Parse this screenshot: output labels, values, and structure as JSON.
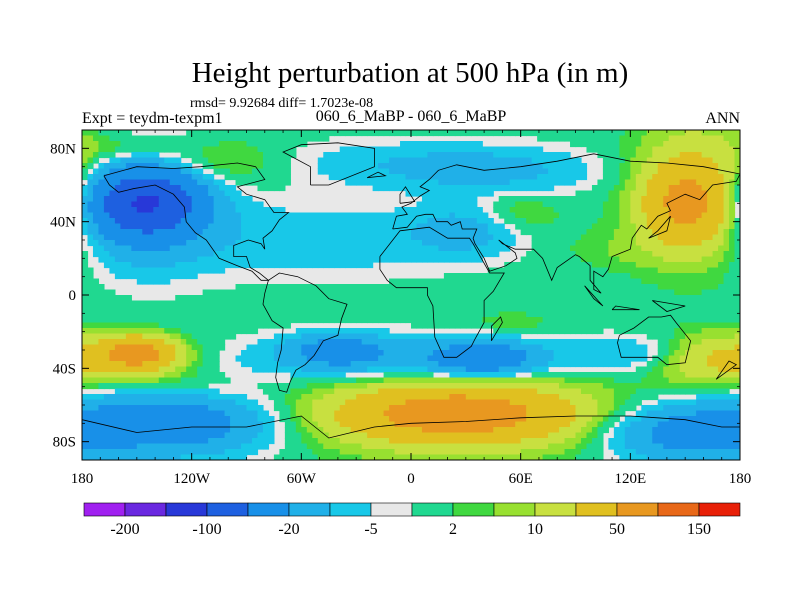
{
  "chart_data": {
    "type": "heatmap",
    "subtype": "filled-contour-map",
    "title": "Height perturbation at 500 hPa (in m)",
    "stats": "rmsd= 9.92684 diff= 1.7023e-08",
    "subtitle_left": "Expt = teydm-texpm1",
    "subtitle_center": "060_6_MaBP - 060_6_MaBP",
    "subtitle_right": "ANN",
    "x_axis": {
      "range": [
        -180,
        180
      ],
      "ticks": [
        -180,
        -120,
        -60,
        0,
        60,
        120,
        180
      ],
      "tick_labels": [
        "180",
        "120W",
        "60W",
        "0",
        "60E",
        "120E",
        "180"
      ]
    },
    "y_axis": {
      "range": [
        -90,
        90
      ],
      "ticks": [
        80,
        40,
        0,
        -40,
        -80
      ],
      "tick_labels": [
        "80N",
        "40N",
        "0",
        "40S",
        "80S"
      ]
    },
    "colorbar": {
      "colors": [
        "#a020f0",
        "#6a28e0",
        "#2838d8",
        "#1e60e0",
        "#1890e8",
        "#20b0e8",
        "#18c8e8",
        "#e8e8e8",
        "#20d890",
        "#40d840",
        "#98e030",
        "#c8e040",
        "#e0c020",
        "#e89820",
        "#e86818",
        "#e82008"
      ],
      "tick_labels": [
        "-200",
        "-100",
        "-20",
        "-5",
        "2",
        "10",
        "50",
        "150"
      ],
      "levels": [
        -200,
        -150,
        -100,
        -50,
        -20,
        -10,
        -5,
        -2,
        2,
        5,
        10,
        20,
        50,
        100,
        150
      ]
    },
    "field_blobs": [
      {
        "lon": -150,
        "lat": 50,
        "rlon": 42,
        "rlat": 32,
        "value": -30
      },
      {
        "lon": -145,
        "lat": 50,
        "rlon": 25,
        "rlat": 15,
        "value": -80
      },
      {
        "lon": -50,
        "lat": 30,
        "rlon": 75,
        "rlat": 20,
        "value": -9
      },
      {
        "lon": 30,
        "lat": 35,
        "rlon": 30,
        "rlat": 14,
        "value": -12
      },
      {
        "lon": -10,
        "lat": 72,
        "rlon": 75,
        "rlat": 13,
        "value": -8
      },
      {
        "lon": 50,
        "lat": 67,
        "rlon": 55,
        "rlat": 13,
        "value": -10
      },
      {
        "lon": 60,
        "lat": 45,
        "rlon": 22,
        "rlat": 11,
        "value": 7
      },
      {
        "lon": -112,
        "lat": 72,
        "rlon": 40,
        "rlat": 13,
        "value": 12
      },
      {
        "lon": -155,
        "lat": 80,
        "rlon": 28,
        "rlat": 8,
        "value": 8
      },
      {
        "lon": 160,
        "lat": 55,
        "rlon": 35,
        "rlat": 35,
        "value": 28
      },
      {
        "lon": 150,
        "lat": 50,
        "rlon": 18,
        "rlat": 18,
        "value": 48
      },
      {
        "lon": 115,
        "lat": 25,
        "rlon": 35,
        "rlat": 11,
        "value": 4
      },
      {
        "lon": -10,
        "lat": -35,
        "rlon": 95,
        "rlat": 13,
        "value": -14
      },
      {
        "lon": 40,
        "lat": -35,
        "rlon": 28,
        "rlat": 9,
        "value": -30
      },
      {
        "lon": -40,
        "lat": -30,
        "rlon": 25,
        "rlat": 9,
        "value": -22
      },
      {
        "lon": 130,
        "lat": -32,
        "rlon": 40,
        "rlat": 10,
        "value": -10
      },
      {
        "lon": -160,
        "lat": -35,
        "rlon": 40,
        "rlat": 13,
        "value": 20
      },
      {
        "lon": -150,
        "lat": -32,
        "rlon": 18,
        "rlat": 8,
        "value": 58
      },
      {
        "lon": 160,
        "lat": -35,
        "rlon": 28,
        "rlat": 13,
        "value": 18
      },
      {
        "lon": 25,
        "lat": -65,
        "rlon": 80,
        "rlat": 20,
        "value": 32
      },
      {
        "lon": 25,
        "lat": -65,
        "rlon": 45,
        "rlat": 11,
        "value": 55
      },
      {
        "lon": -130,
        "lat": -70,
        "rlon": 55,
        "rlat": 17,
        "value": -32
      },
      {
        "lon": 150,
        "lat": -75,
        "rlon": 45,
        "rlat": 16,
        "value": -28
      },
      {
        "lon": -120,
        "lat": -50,
        "rlon": 30,
        "rlat": 8,
        "value": 4
      },
      {
        "lon": 55,
        "lat": -15,
        "rlon": 18,
        "rlat": 5,
        "value": 6
      }
    ],
    "coastlines": [
      [
        [
          -168,
          65
        ],
        [
          -150,
          70
        ],
        [
          -130,
          69
        ],
        [
          -115,
          70
        ],
        [
          -95,
          72
        ],
        [
          -85,
          70
        ],
        [
          -80,
          63
        ],
        [
          -95,
          59
        ],
        [
          -90,
          55
        ],
        [
          -80,
          52
        ],
        [
          -75,
          45
        ],
        [
          -67,
          45
        ],
        [
          -72,
          41
        ],
        [
          -76,
          35
        ],
        [
          -81,
          31
        ],
        [
          -80,
          25
        ],
        [
          -82,
          28
        ],
        [
          -89,
          30
        ],
        [
          -97,
          27
        ],
        [
          -97,
          21
        ],
        [
          -90,
          21
        ],
        [
          -88,
          15
        ],
        [
          -83,
          12
        ],
        [
          -78,
          8
        ],
        [
          -82,
          8
        ],
        [
          -87,
          13
        ],
        [
          -95,
          16
        ],
        [
          -105,
          20
        ],
        [
          -112,
          30
        ],
        [
          -118,
          34
        ],
        [
          -123,
          40
        ],
        [
          -124,
          48
        ],
        [
          -130,
          55
        ],
        [
          -140,
          60
        ],
        [
          -152,
          58
        ],
        [
          -160,
          56
        ],
        [
          -165,
          60
        ],
        [
          -168,
          65
        ]
      ],
      [
        [
          -78,
          8
        ],
        [
          -72,
          12
        ],
        [
          -62,
          10
        ],
        [
          -52,
          5
        ],
        [
          -45,
          -2
        ],
        [
          -35,
          -5
        ],
        [
          -38,
          -13
        ],
        [
          -40,
          -22
        ],
        [
          -48,
          -25
        ],
        [
          -53,
          -33
        ],
        [
          -58,
          -38
        ],
        [
          -63,
          -41
        ],
        [
          -66,
          -47
        ],
        [
          -68,
          -53
        ],
        [
          -72,
          -52
        ],
        [
          -74,
          -45
        ],
        [
          -73,
          -37
        ],
        [
          -71,
          -30
        ],
        [
          -70,
          -18
        ],
        [
          -76,
          -14
        ],
        [
          -81,
          -5
        ],
        [
          -80,
          1
        ],
        [
          -78,
          8
        ]
      ],
      [
        [
          -10,
          36
        ],
        [
          -8,
          43
        ],
        [
          -2,
          44
        ],
        [
          -5,
          48
        ],
        [
          0,
          50
        ],
        [
          5,
          54
        ],
        [
          10,
          57
        ],
        [
          5,
          59
        ],
        [
          10,
          63
        ],
        [
          15,
          68
        ],
        [
          25,
          71
        ],
        [
          40,
          68
        ],
        [
          60,
          70
        ],
        [
          80,
          73
        ],
        [
          100,
          77
        ],
        [
          120,
          73
        ],
        [
          140,
          72
        ],
        [
          160,
          70
        ],
        [
          180,
          66
        ],
        [
          178,
          62
        ],
        [
          165,
          60
        ],
        [
          158,
          52
        ],
        [
          150,
          55
        ],
        [
          140,
          50
        ],
        [
          142,
          46
        ],
        [
          135,
          43
        ],
        [
          129,
          36
        ],
        [
          126,
          38
        ],
        [
          121,
          31
        ],
        [
          120,
          25
        ],
        [
          110,
          21
        ],
        [
          108,
          14
        ],
        [
          105,
          10
        ],
        [
          100,
          13
        ],
        [
          100,
          3
        ],
        [
          104,
          1
        ],
        [
          98,
          8
        ],
        [
          98,
          16
        ],
        [
          92,
          21
        ],
        [
          90,
          22
        ],
        [
          80,
          15
        ],
        [
          77,
          8
        ],
        [
          72,
          20
        ],
        [
          67,
          25
        ],
        [
          57,
          25
        ],
        [
          50,
          28
        ],
        [
          48,
          30
        ],
        [
          57,
          23
        ],
        [
          58,
          20
        ],
        [
          52,
          16
        ],
        [
          43,
          13
        ],
        [
          40,
          20
        ],
        [
          35,
          28
        ],
        [
          34,
          31
        ],
        [
          36,
          36
        ],
        [
          28,
          36
        ],
        [
          27,
          40
        ],
        [
          22,
          38
        ],
        [
          20,
          40
        ],
        [
          14,
          40
        ],
        [
          12,
          44
        ],
        [
          8,
          44
        ],
        [
          3,
          43
        ],
        [
          -2,
          37
        ],
        [
          -10,
          36
        ]
      ],
      [
        [
          -17,
          21
        ],
        [
          -6,
          35
        ],
        [
          10,
          37
        ],
        [
          20,
          31
        ],
        [
          32,
          31
        ],
        [
          34,
          28
        ],
        [
          43,
          12
        ],
        [
          51,
          12
        ],
        [
          45,
          2
        ],
        [
          40,
          -3
        ],
        [
          40,
          -15
        ],
        [
          35,
          -24
        ],
        [
          33,
          -28
        ],
        [
          25,
          -34
        ],
        [
          18,
          -34
        ],
        [
          13,
          -23
        ],
        [
          12,
          -6
        ],
        [
          9,
          0
        ],
        [
          9,
          4
        ],
        [
          5,
          4
        ],
        [
          -8,
          4
        ],
        [
          -13,
          8
        ],
        [
          -17,
          14
        ],
        [
          -17,
          21
        ]
      ],
      [
        [
          114,
          -22
        ],
        [
          122,
          -18
        ],
        [
          130,
          -12
        ],
        [
          137,
          -12
        ],
        [
          142,
          -11
        ],
        [
          145,
          -15
        ],
        [
          153,
          -25
        ],
        [
          150,
          -37
        ],
        [
          140,
          -38
        ],
        [
          135,
          -34
        ],
        [
          125,
          -34
        ],
        [
          115,
          -34
        ],
        [
          113,
          -26
        ],
        [
          114,
          -22
        ]
      ],
      [
        [
          -55,
          60
        ],
        [
          -45,
          60
        ],
        [
          -20,
          70
        ],
        [
          -20,
          80
        ],
        [
          -40,
          83
        ],
        [
          -60,
          82
        ],
        [
          -70,
          78
        ],
        [
          -55,
          70
        ],
        [
          -55,
          60
        ]
      ],
      [
        [
          -180,
          -68
        ],
        [
          -150,
          -75
        ],
        [
          -120,
          -72
        ],
        [
          -90,
          -72
        ],
        [
          -60,
          -66
        ],
        [
          -45,
          -78
        ],
        [
          -20,
          -72
        ],
        [
          0,
          -70
        ],
        [
          30,
          -69
        ],
        [
          60,
          -67
        ],
        [
          90,
          -66
        ],
        [
          120,
          -66
        ],
        [
          150,
          -68
        ],
        [
          170,
          -72
        ],
        [
          180,
          -72
        ]
      ],
      [
        [
          44,
          -25
        ],
        [
          50,
          -15
        ],
        [
          49,
          -12
        ],
        [
          44,
          -17
        ],
        [
          44,
          -25
        ]
      ],
      [
        [
          -6,
          50
        ],
        [
          2,
          51
        ],
        [
          -3,
          59
        ],
        [
          -6,
          55
        ],
        [
          -6,
          50
        ]
      ],
      [
        [
          130,
          31
        ],
        [
          140,
          35
        ],
        [
          142,
          43
        ],
        [
          135,
          35
        ],
        [
          130,
          31
        ]
      ],
      [
        [
          95,
          5
        ],
        [
          105,
          -6
        ],
        [
          100,
          -2
        ],
        [
          95,
          5
        ]
      ],
      [
        [
          110,
          -8
        ],
        [
          125,
          -8
        ],
        [
          112,
          -6
        ],
        [
          110,
          -8
        ]
      ],
      [
        [
          132,
          -3
        ],
        [
          150,
          -6
        ],
        [
          140,
          -9
        ],
        [
          132,
          -3
        ]
      ],
      [
        [
          -24,
          64
        ],
        [
          -14,
          65
        ],
        [
          -18,
          67
        ],
        [
          -24,
          64
        ]
      ],
      [
        [
          167,
          -46
        ],
        [
          174,
          -36
        ],
        [
          178,
          -38
        ],
        [
          167,
          -46
        ]
      ]
    ]
  }
}
